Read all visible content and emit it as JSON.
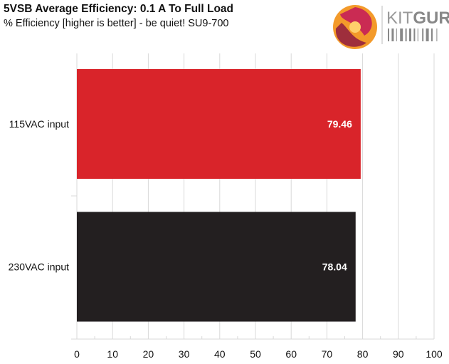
{
  "chart_data": {
    "type": "bar",
    "orientation": "horizontal",
    "title": "5VSB Average Efficiency: 0.1 A To Full Load",
    "subtitle": "% Efficiency [higher is better] - be quiet! SU9-700",
    "categories": [
      "115VAC input",
      "230VAC input"
    ],
    "values": [
      79.46,
      78.04
    ],
    "value_labels": [
      "79.46",
      "78.04"
    ],
    "colors": [
      "#d9242a",
      "#231f20"
    ],
    "xlim": [
      0,
      100
    ],
    "xticks": [
      "0",
      "10",
      "20",
      "30",
      "40",
      "50",
      "60",
      "70",
      "80",
      "90",
      "100"
    ],
    "grid": true
  },
  "logo": {
    "text": "KITGURU"
  }
}
